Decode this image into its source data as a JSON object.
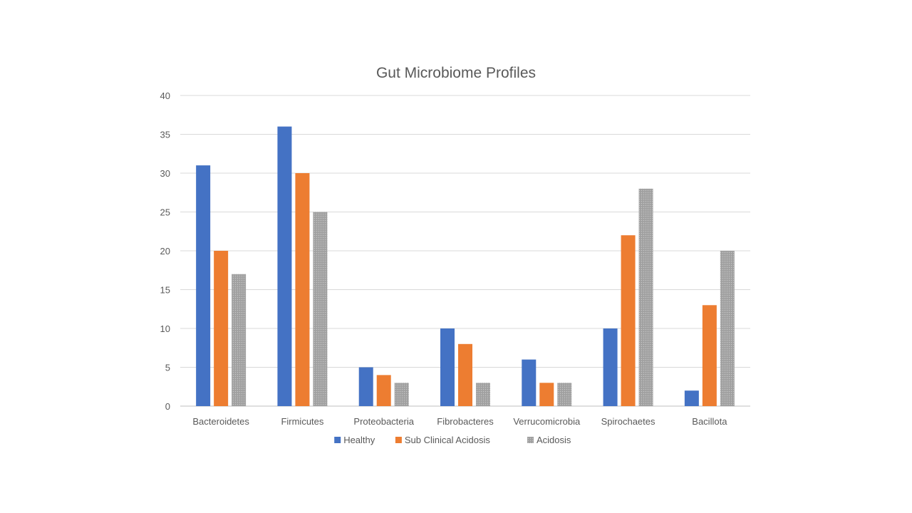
{
  "chart_data": {
    "type": "bar",
    "title": "Gut Microbiome Profiles",
    "xlabel": "",
    "ylabel": "",
    "ylim": [
      0,
      40
    ],
    "yticks": [
      0,
      5,
      10,
      15,
      20,
      25,
      30,
      35,
      40
    ],
    "grid": true,
    "legend_position": "bottom",
    "categories": [
      "Bacteroidetes",
      "Firmicutes",
      "Proteobacteria",
      "Fibrobacteres",
      "Verrucomicrobia",
      "Spirochaetes",
      "Bacillota"
    ],
    "series": [
      {
        "name": "Healthy",
        "color": "#4472C4",
        "pattern": "solid",
        "values": [
          31,
          36,
          5,
          10,
          6,
          10,
          2
        ]
      },
      {
        "name": "Sub Clinical Acidosis",
        "color": "#ED7D31",
        "pattern": "solid",
        "values": [
          20,
          30,
          4,
          8,
          3,
          22,
          13
        ]
      },
      {
        "name": "Acidosis",
        "color": "#A5A5A5",
        "pattern": "dotted",
        "values": [
          17,
          25,
          3,
          3,
          3,
          28,
          20
        ]
      }
    ]
  }
}
